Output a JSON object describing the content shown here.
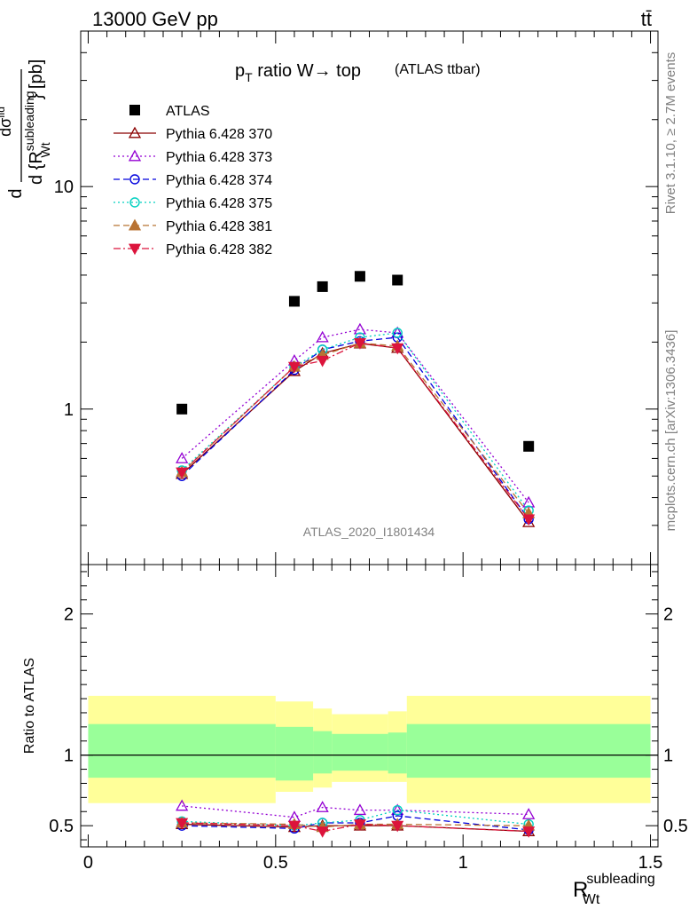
{
  "header": {
    "energy_label": "13000 GeV pp",
    "process_label": "tt̄"
  },
  "side_labels": {
    "rivet": "Rivet 3.1.10, ≥ 2.7M events",
    "source": "mcplots.cern.ch [arXiv:1306.3436]"
  },
  "chart_data": [
    {
      "type": "scatter",
      "panel": "main",
      "title": "p_T ratio W → top (ATLAS ttbar)",
      "title_main": "p",
      "title_sub": "T",
      "title_rest": " ratio W",
      "title_arrow": "→",
      "title_top": " top",
      "title_small": "(ATLAS ttbar)",
      "analysis_label": "ATLAS_2020_I1801434",
      "ylabel_parts": {
        "d1": "d",
        "num": "dσ",
        "num_sup": "fid",
        "den_d": "d {R",
        "den_sup": "subleading",
        "den_sub": "Wt",
        "unit": "} [pb]"
      },
      "yscale": "log",
      "ylim": [
        0.2,
        50
      ],
      "xlim": [
        -0.02,
        1.52
      ],
      "y_tick_labels": [
        "1",
        "10"
      ],
      "legend_position": "top-left",
      "x": [
        0.25,
        0.55,
        0.625,
        0.725,
        0.825,
        1.175
      ],
      "series": [
        {
          "name": "ATLAS",
          "color": "#000000",
          "marker": "square-filled",
          "line": "none",
          "values": [
            1.0,
            3.05,
            3.55,
            3.95,
            3.8,
            0.68
          ]
        },
        {
          "name": "Pythia 6.428 370",
          "color": "#8b0000",
          "marker": "triangle-open",
          "line": "solid",
          "values": [
            0.51,
            1.48,
            1.78,
            1.97,
            1.88,
            0.31
          ]
        },
        {
          "name": "Pythia 6.428 373",
          "color": "#9400d3",
          "marker": "triangle-open",
          "line": "dotted",
          "values": [
            0.6,
            1.65,
            2.1,
            2.28,
            2.2,
            0.38
          ]
        },
        {
          "name": "Pythia 6.428 374",
          "color": "#0000dd",
          "marker": "circle-open",
          "line": "dashed",
          "values": [
            0.5,
            1.5,
            1.85,
            2.02,
            2.1,
            0.32
          ]
        },
        {
          "name": "Pythia 6.428 375",
          "color": "#00d0c0",
          "marker": "circle-open",
          "line": "dotted",
          "values": [
            0.53,
            1.55,
            1.85,
            2.1,
            2.2,
            0.35
          ]
        },
        {
          "name": "Pythia 6.428 381",
          "color": "#b87333",
          "marker": "triangle-filled",
          "line": "dashed",
          "values": [
            0.52,
            1.55,
            1.75,
            1.98,
            1.92,
            0.34
          ]
        },
        {
          "name": "Pythia 6.428 382",
          "color": "#dc143c",
          "marker": "triangle-down-filled",
          "line": "dashdot",
          "values": [
            0.52,
            1.55,
            1.65,
            1.98,
            1.88,
            0.32
          ]
        }
      ]
    },
    {
      "type": "scatter",
      "panel": "ratio",
      "ylabel": "Ratio to ATLAS",
      "xlabel_main": "R",
      "xlabel_sup": "subleading",
      "xlabel_sub": "Wt",
      "ylim": [
        0.35,
        2.35
      ],
      "xlim": [
        -0.02,
        1.52
      ],
      "y_tick_labels": [
        "0.5",
        "1",
        "2"
      ],
      "x_tick_labels": [
        "0",
        "0.5",
        "1",
        "1.5"
      ],
      "reference_line": 1,
      "bins": [
        {
          "lo": 0.0,
          "hi": 0.5,
          "inner": [
            0.84,
            1.22
          ],
          "outer": [
            0.66,
            1.42
          ]
        },
        {
          "lo": 0.5,
          "hi": 0.6,
          "inner": [
            0.82,
            1.2
          ],
          "outer": [
            0.74,
            1.38
          ]
        },
        {
          "lo": 0.6,
          "hi": 0.65,
          "inner": [
            0.87,
            1.17
          ],
          "outer": [
            0.77,
            1.33
          ]
        },
        {
          "lo": 0.65,
          "hi": 0.8,
          "inner": [
            0.89,
            1.15
          ],
          "outer": [
            0.81,
            1.29
          ]
        },
        {
          "lo": 0.8,
          "hi": 0.85,
          "inner": [
            0.87,
            1.16
          ],
          "outer": [
            0.81,
            1.31
          ]
        },
        {
          "lo": 0.85,
          "hi": 1.5,
          "inner": [
            0.84,
            1.22
          ],
          "outer": [
            0.66,
            1.42
          ]
        }
      ],
      "x": [
        0.25,
        0.55,
        0.625,
        0.725,
        0.825,
        1.175
      ],
      "series": [
        {
          "name": "Pythia 6.428 370",
          "color": "#8b0000",
          "marker": "triangle-open",
          "line": "solid",
          "values": [
            0.51,
            0.49,
            0.5,
            0.5,
            0.5,
            0.46
          ]
        },
        {
          "name": "Pythia 6.428 373",
          "color": "#9400d3",
          "marker": "triangle-open",
          "line": "dotted",
          "values": [
            0.64,
            0.56,
            0.63,
            0.61,
            0.61,
            0.58
          ]
        },
        {
          "name": "Pythia 6.428 374",
          "color": "#0000dd",
          "marker": "circle-open",
          "line": "dashed",
          "values": [
            0.5,
            0.48,
            0.52,
            0.52,
            0.57,
            0.47
          ]
        },
        {
          "name": "Pythia 6.428 375",
          "color": "#00d0c0",
          "marker": "circle-open",
          "line": "dotted",
          "values": [
            0.53,
            0.5,
            0.52,
            0.54,
            0.61,
            0.51
          ]
        },
        {
          "name": "Pythia 6.428 381",
          "color": "#b87333",
          "marker": "triangle-filled",
          "line": "dashed",
          "values": [
            0.52,
            0.51,
            0.49,
            0.51,
            0.51,
            0.5
          ]
        },
        {
          "name": "Pythia 6.428 382",
          "color": "#dc143c",
          "marker": "triangle-down-filled",
          "line": "dashdot",
          "values": [
            0.52,
            0.5,
            0.46,
            0.51,
            0.5,
            0.46
          ]
        }
      ],
      "band_colors": {
        "inner": "#99ff99",
        "outer": "#ffff99"
      }
    }
  ]
}
